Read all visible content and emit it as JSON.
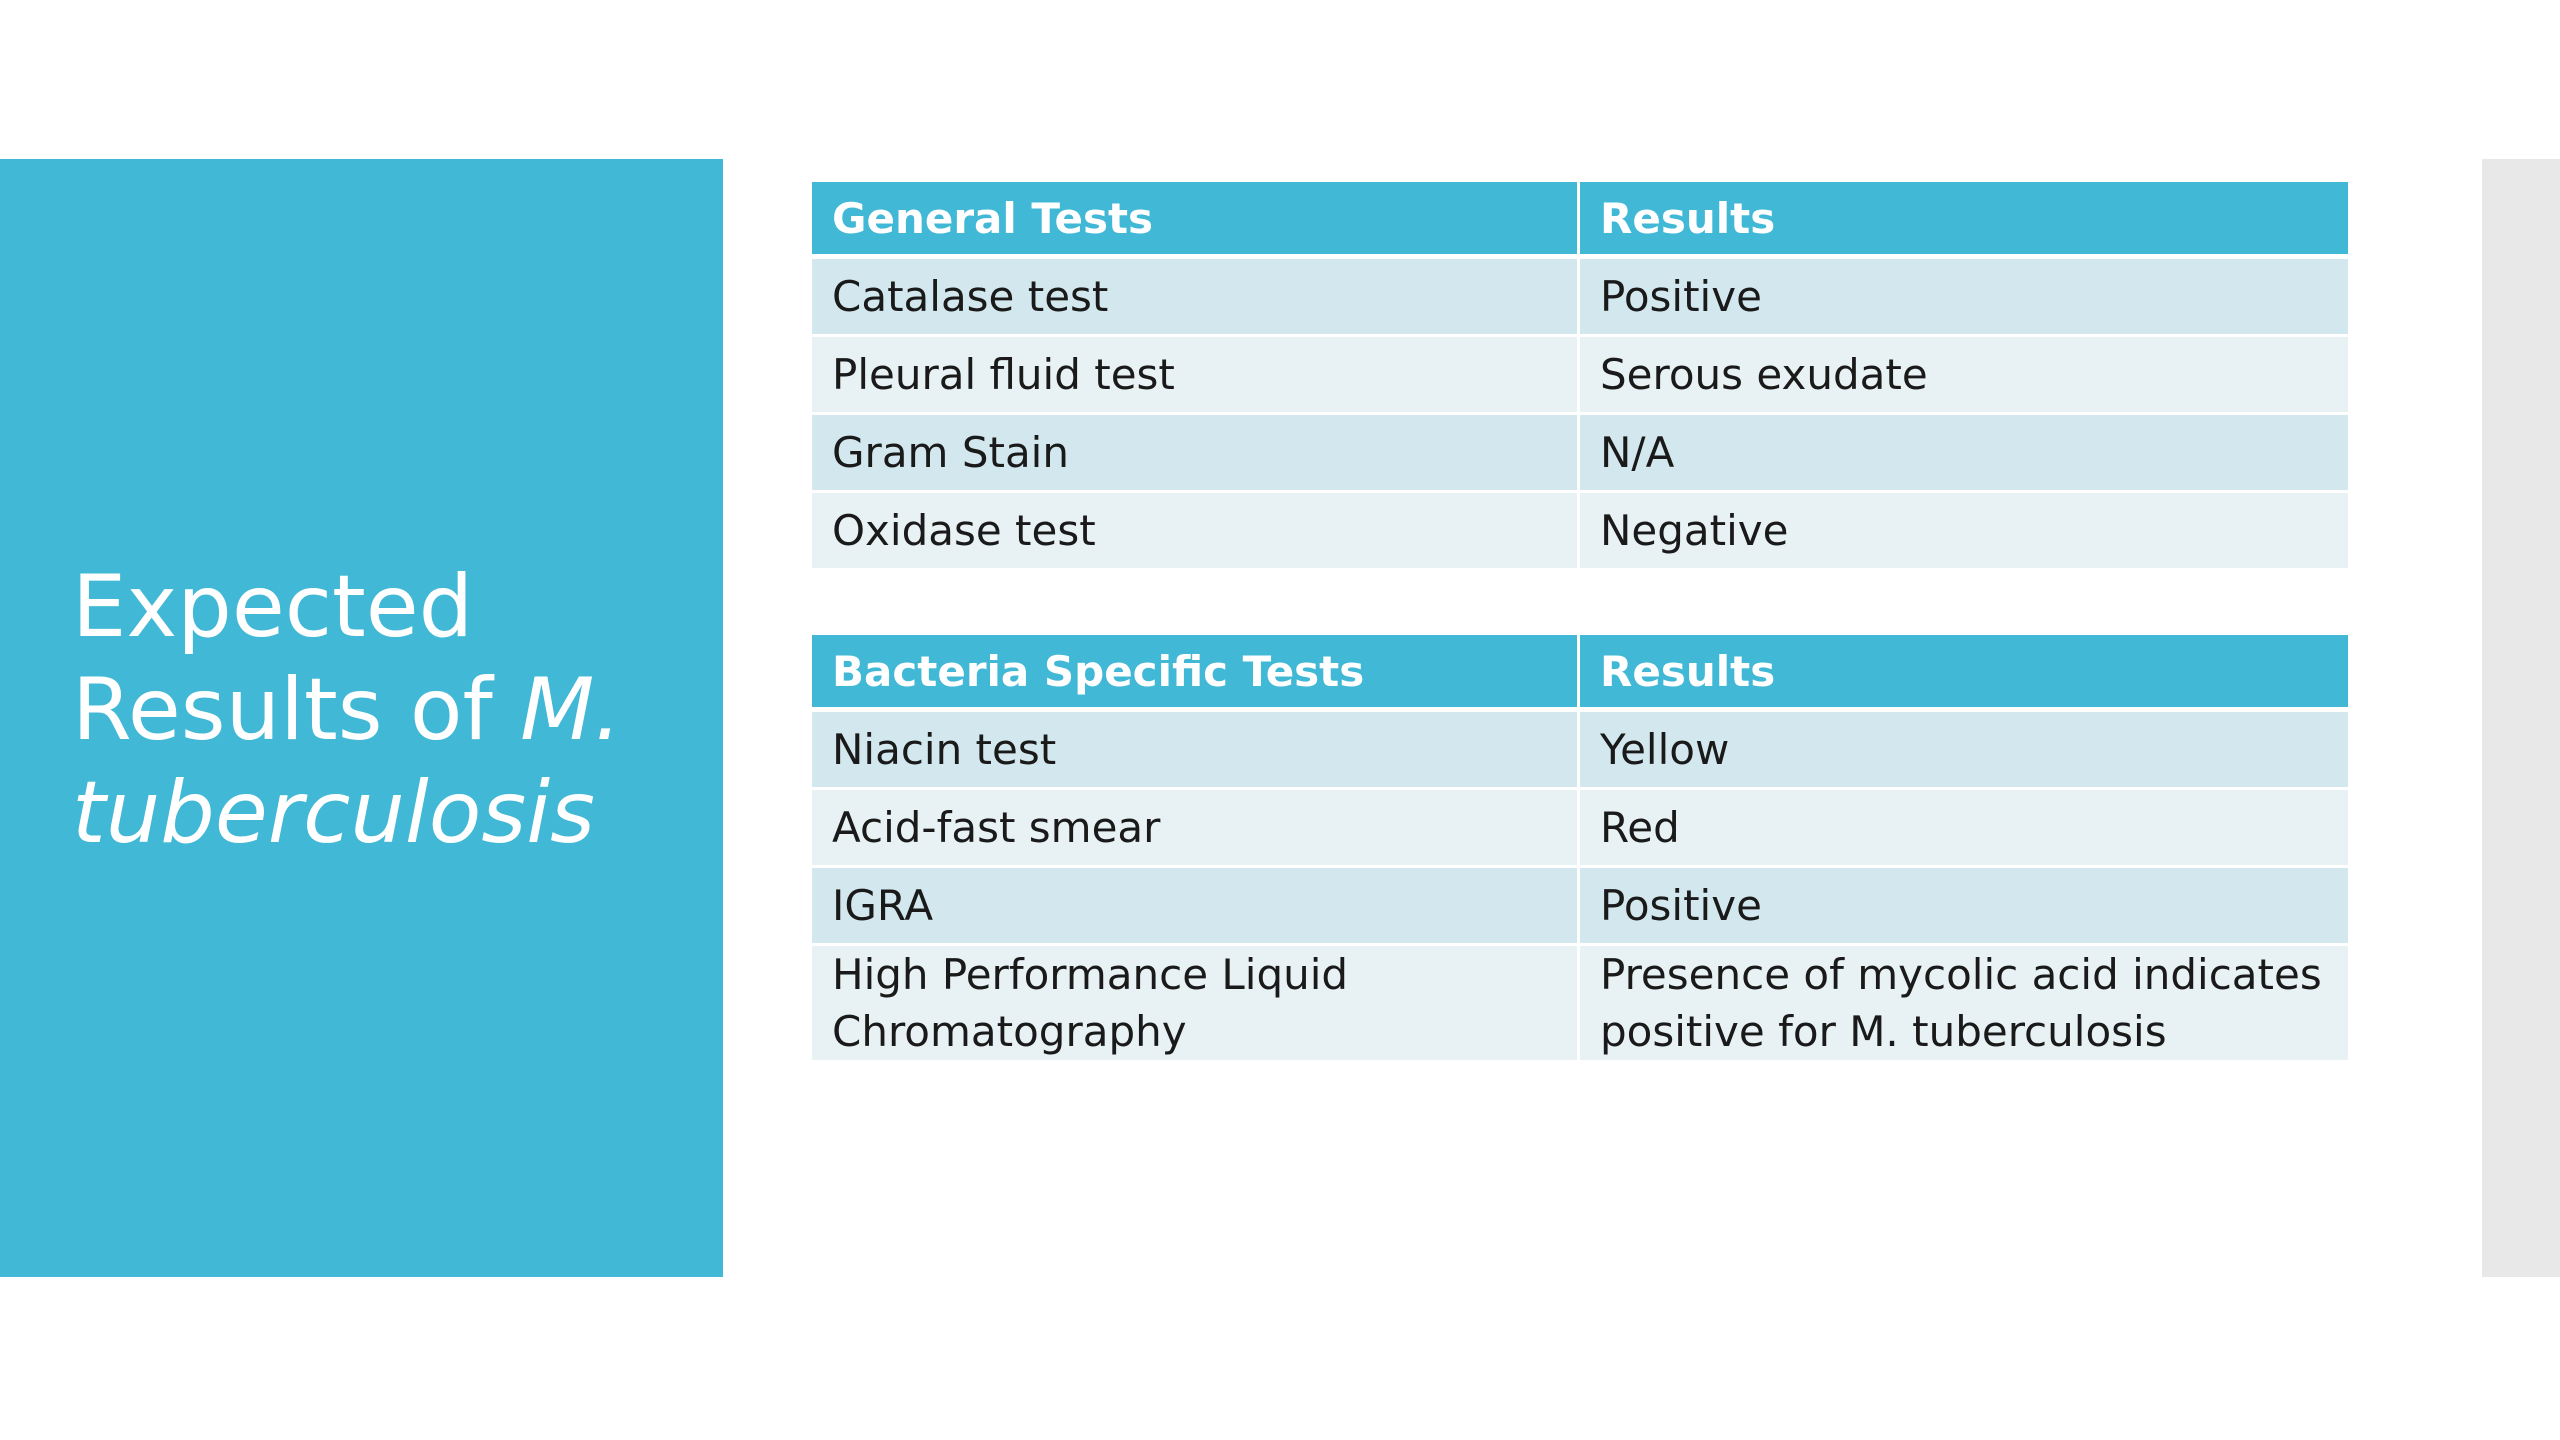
{
  "title": {
    "line_regular": "Expected Results of ",
    "line_italic_1": "M.",
    "line_italic_2": "tuberculosis"
  },
  "tables": [
    {
      "headers": [
        "General Tests",
        "Results"
      ],
      "rows": [
        [
          "Catalase test",
          "Positive"
        ],
        [
          "Pleural fluid test",
          "Serous exudate"
        ],
        [
          "Gram Stain",
          "N/A"
        ],
        [
          "Oxidase test",
          "Negative"
        ]
      ]
    },
    {
      "headers": [
        "Bacteria Specific Tests",
        "Results"
      ],
      "rows": [
        [
          "Niacin test",
          "Yellow"
        ],
        [
          "Acid-fast smear",
          "Red"
        ],
        [
          "IGRA",
          "Positive"
        ],
        [
          "High Performance Liquid Chromatography",
          "Presence of mycolic acid indicates positive for M. tuberculosis"
        ]
      ]
    }
  ],
  "colors": {
    "accent": "#41b8d5",
    "row_odd": "#d3e8ee",
    "row_even": "#e8f2f5"
  }
}
